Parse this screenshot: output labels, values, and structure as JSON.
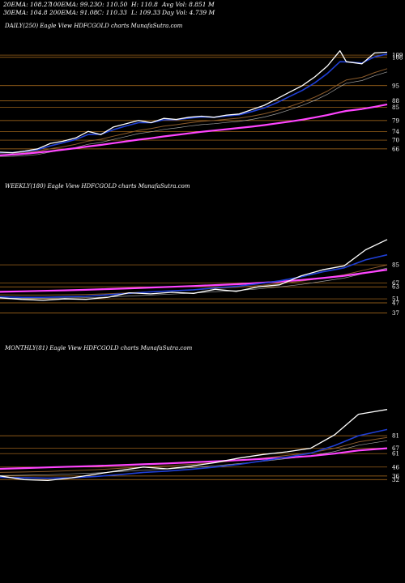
{
  "stats": [
    {
      "label": "20EMA: 108.27"
    },
    {
      "label": "100EMA: 99.23"
    },
    {
      "label": "O: 110.50"
    },
    {
      "label": "H: 110.8"
    },
    {
      "label": "Avg Vol: 8.851 M"
    },
    {
      "label": "30EMA: 104.8"
    },
    {
      "label": "200EMA: 91.08"
    },
    {
      "label": "C: 110.33"
    },
    {
      "label": "L: 109.33"
    },
    {
      "label": "Day Vol: 4.739 M"
    }
  ],
  "colors": {
    "background": "#000000",
    "price": "#ffffff",
    "ema_short": "#1f3fd6",
    "ema_long": "#ff44ff",
    "ema_mid": "#8a5a2a",
    "level_line": "#b8751f"
  },
  "chart_data": [
    {
      "type": "line",
      "title": "DAILY(250) Eagle  View  HDFCGOLD charts MunafaSutra.com",
      "ylim": [
        60,
        112
      ],
      "levels": [
        109,
        108,
        95,
        88,
        85,
        79,
        74,
        70,
        66
      ],
      "x": [
        0,
        8,
        16,
        24,
        32,
        40,
        48,
        56,
        64,
        72,
        80,
        88,
        96,
        104,
        112,
        120,
        128,
        136,
        144,
        152,
        160,
        168,
        176,
        184,
        192,
        200,
        208,
        216,
        220,
        230,
        238,
        246
      ],
      "series": [
        {
          "role": "price",
          "values": [
            64.5,
            64.2,
            65.0,
            66.0,
            68.5,
            69.5,
            71.0,
            74.0,
            72.5,
            76.0,
            77.5,
            79.0,
            78.0,
            80.0,
            79.5,
            80.5,
            81.0,
            80.5,
            81.5,
            82.0,
            84.0,
            86.0,
            89.0,
            92.0,
            95.0,
            99.0,
            104.0,
            111.0,
            106.0,
            105.0,
            110.0,
            110.33
          ]
        },
        {
          "role": "ema_short",
          "values": [
            64.3,
            64.3,
            64.8,
            65.6,
            67.4,
            68.8,
            70.3,
            72.6,
            72.7,
            74.8,
            76.5,
            78.0,
            78.0,
            79.3,
            79.4,
            80.1,
            80.6,
            80.5,
            81.1,
            81.6,
            83.1,
            84.8,
            87.2,
            90.0,
            92.8,
            96.3,
            100.6,
            106.0,
            105.9,
            105.4,
            108.2,
            109.5
          ]
        },
        {
          "role": "ema_mid",
          "values": [
            64.0,
            64.1,
            64.4,
            64.9,
            66.0,
            67.0,
            68.1,
            69.6,
            70.4,
            71.8,
            73.1,
            74.5,
            75.3,
            76.4,
            77.1,
            77.9,
            78.6,
            79.0,
            79.6,
            80.1,
            81.0,
            82.1,
            83.6,
            85.4,
            87.4,
            89.7,
            92.5,
            96.0,
            97.6,
            98.8,
            101.0,
            102.8
          ]
        },
        {
          "role": "ema_long",
          "values": [
            63.0,
            63.4,
            63.8,
            64.3,
            64.9,
            65.6,
            66.3,
            67.1,
            67.8,
            68.6,
            69.4,
            70.2,
            70.9,
            71.7,
            72.4,
            73.1,
            73.8,
            74.4,
            75.0,
            75.6,
            76.2,
            76.9,
            77.7,
            78.5,
            79.4,
            80.4,
            81.5,
            82.8,
            83.4,
            84.3,
            85.3,
            86.4
          ]
        }
      ]
    },
    {
      "type": "line",
      "title": "WEEKLY(180) Eagle  View  HDFCGOLD charts MunafaSutra.com",
      "ylim": [
        30,
        115
      ],
      "levels": [
        85,
        67,
        63,
        51,
        47,
        37
      ],
      "x": [
        0,
        10,
        20,
        30,
        40,
        50,
        60,
        70,
        80,
        90,
        100,
        110,
        120,
        130,
        140,
        150,
        160,
        170,
        180
      ],
      "series": [
        {
          "role": "price",
          "values": [
            52.0,
            50.5,
            49.5,
            51.0,
            50.5,
            52.5,
            57.0,
            56.0,
            57.5,
            56.5,
            60.5,
            58.5,
            63.0,
            65.0,
            74.0,
            80.0,
            84.0,
            100.0,
            110.3
          ]
        },
        {
          "role": "ema_short",
          "values": [
            53.0,
            52.5,
            52.5,
            53.0,
            53.5,
            55.0,
            56.5,
            58.0,
            59.0,
            60.0,
            62.0,
            63.5,
            66.0,
            69.0,
            73.0,
            78.0,
            82.0,
            90.0,
            95.0
          ]
        },
        {
          "role": "ema_mid",
          "values": [
            55.0,
            54.8,
            54.8,
            55.0,
            55.3,
            56.0,
            57.0,
            58.0,
            59.0,
            60.0,
            61.3,
            62.5,
            64.2,
            66.2,
            68.6,
            71.8,
            75.0,
            80.0,
            85.0
          ]
        },
        {
          "role": "ema_long",
          "values": [
            58.0,
            58.5,
            59.0,
            59.5,
            60.0,
            60.8,
            61.5,
            62.3,
            63.0,
            63.8,
            64.7,
            65.6,
            66.8,
            68.2,
            69.8,
            71.8,
            74.0,
            77.0,
            80.0
          ]
        }
      ]
    },
    {
      "type": "line",
      "title": "MONTHLY(81) Eagle  View  HDFCGOLD charts MunafaSutra.com",
      "ylim": [
        25,
        120
      ],
      "levels": [
        81,
        67,
        61,
        46,
        36,
        32
      ],
      "x": [
        0,
        5,
        10,
        15,
        20,
        25,
        30,
        35,
        40,
        45,
        50,
        55,
        60,
        65,
        70,
        75,
        81
      ],
      "series": [
        {
          "role": "price",
          "values": [
            36.0,
            32.0,
            31.0,
            34.0,
            38.0,
            42.0,
            46.0,
            44.0,
            47.0,
            51.0,
            56.0,
            60.0,
            63.0,
            67.0,
            82.0,
            105.0,
            110.3
          ]
        },
        {
          "role": "ema_short",
          "values": [
            34.5,
            34.0,
            33.5,
            34.0,
            35.5,
            37.5,
            40.0,
            41.5,
            43.5,
            46.0,
            49.0,
            53.0,
            57.0,
            61.5,
            70.0,
            81.0,
            88.0
          ]
        },
        {
          "role": "ema_mid",
          "values": [
            40.0,
            40.5,
            41.0,
            42.0,
            43.0,
            44.5,
            46.0,
            47.5,
            49.0,
            51.0,
            53.5,
            56.0,
            59.0,
            62.0,
            67.0,
            74.0,
            79.0
          ]
        },
        {
          "role": "ema_long",
          "values": [
            44.0,
            44.8,
            45.6,
            46.4,
            47.2,
            48.1,
            49.1,
            50.1,
            51.2,
            52.4,
            53.7,
            55.1,
            56.6,
            58.3,
            61.0,
            64.5,
            67.0
          ]
        }
      ]
    }
  ]
}
